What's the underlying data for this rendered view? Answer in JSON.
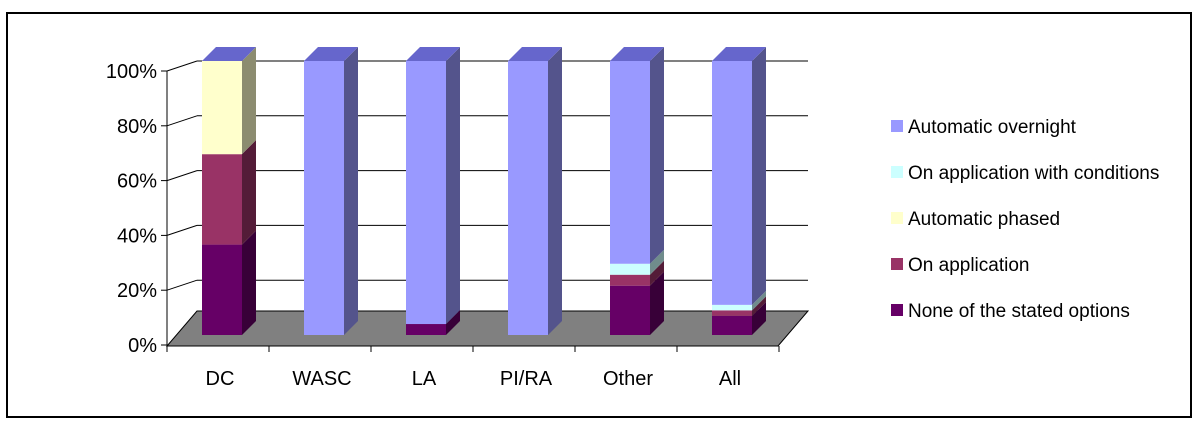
{
  "chart_data": {
    "type": "bar",
    "stacked": true,
    "three_d": true,
    "title": "",
    "xlabel": "",
    "ylabel": "",
    "ylim": [
      0,
      100
    ],
    "y_ticks": [
      "0%",
      "20%",
      "40%",
      "60%",
      "80%",
      "100%"
    ],
    "categories": [
      "DC",
      "WASC",
      "LA",
      "PI/RA",
      "Other",
      "All"
    ],
    "series": [
      {
        "name": "None of the stated options",
        "color": "#660066",
        "values": [
          33,
          0,
          4,
          0,
          18,
          7
        ]
      },
      {
        "name": "On application",
        "color": "#993366",
        "values": [
          33,
          0,
          0,
          0,
          4,
          2
        ]
      },
      {
        "name": "Automatic phased",
        "color": "#FFFFCC",
        "values": [
          34,
          0,
          0,
          0,
          0,
          0
        ]
      },
      {
        "name": "On application with conditions",
        "color": "#CCFFFF",
        "values": [
          0,
          0,
          0,
          0,
          4,
          2
        ]
      },
      {
        "name": "Automatic overnight",
        "color": "#9999FF",
        "values": [
          0,
          100,
          96,
          100,
          74,
          89
        ]
      }
    ],
    "legend_order": [
      "Automatic overnight",
      "On application with conditions",
      "Automatic phased",
      "On application",
      "None of the stated options"
    ],
    "legend_position": "right",
    "grid": true,
    "floor_color": "#808080"
  }
}
